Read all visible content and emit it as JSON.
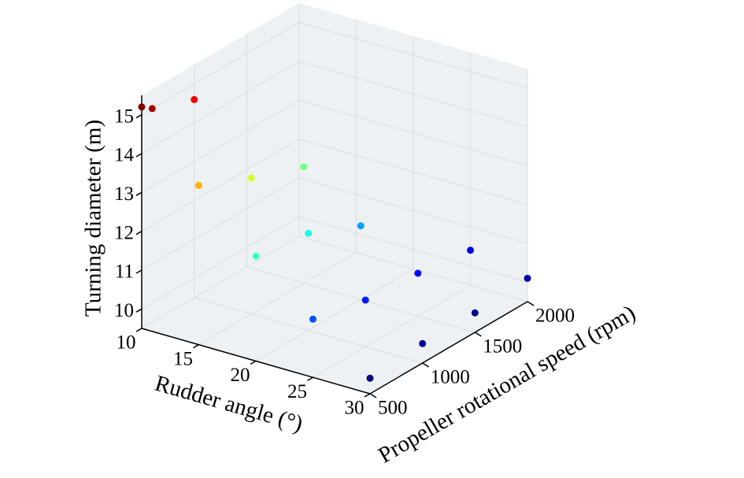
{
  "chart_data": {
    "type": "scatter3d",
    "title": "",
    "x_axis": {
      "label": "Rudder angle (°)",
      "range": [
        10,
        30
      ],
      "ticks": [
        10,
        15,
        20,
        25,
        30
      ]
    },
    "y_axis": {
      "label": "Propeller rotational speed (rpm)",
      "range": [
        500,
        2000
      ],
      "ticks": [
        500,
        1000,
        1500,
        2000
      ]
    },
    "z_axis": {
      "label": "Turning diameter (m)",
      "range": [
        9.5,
        15.5
      ],
      "ticks": [
        10,
        11,
        12,
        13,
        14,
        15
      ]
    },
    "pane_color": "#eef1f3",
    "colormap": "jet",
    "grid": true,
    "points": [
      {
        "rudder_angle": 10,
        "rpm": 500,
        "diameter": 15.2
      },
      {
        "rudder_angle": 10,
        "rpm": 600,
        "diameter": 15.0
      },
      {
        "rudder_angle": 10,
        "rpm": 1000,
        "diameter": 14.6
      },
      {
        "rudder_angle": 15,
        "rpm": 500,
        "diameter": 13.6
      },
      {
        "rudder_angle": 15,
        "rpm": 1000,
        "diameter": 13.0
      },
      {
        "rudder_angle": 15,
        "rpm": 1500,
        "diameter": 12.5
      },
      {
        "rudder_angle": 20,
        "rpm": 500,
        "diameter": 12.2
      },
      {
        "rudder_angle": 20,
        "rpm": 1000,
        "diameter": 12.0
      },
      {
        "rudder_angle": 20,
        "rpm": 1500,
        "diameter": 11.4
      },
      {
        "rudder_angle": 25,
        "rpm": 500,
        "diameter": 11.0
      },
      {
        "rudder_angle": 25,
        "rpm": 1000,
        "diameter": 10.7
      },
      {
        "rudder_angle": 25,
        "rpm": 1500,
        "diameter": 10.6
      },
      {
        "rudder_angle": 25,
        "rpm": 2000,
        "diameter": 10.4
      },
      {
        "rudder_angle": 30,
        "rpm": 500,
        "diameter": 9.9
      },
      {
        "rudder_angle": 30,
        "rpm": 1000,
        "diameter": 10.0
      },
      {
        "rudder_angle": 30,
        "rpm": 1500,
        "diameter": 10.0
      },
      {
        "rudder_angle": 30,
        "rpm": 2000,
        "diameter": 10.1
      }
    ]
  }
}
